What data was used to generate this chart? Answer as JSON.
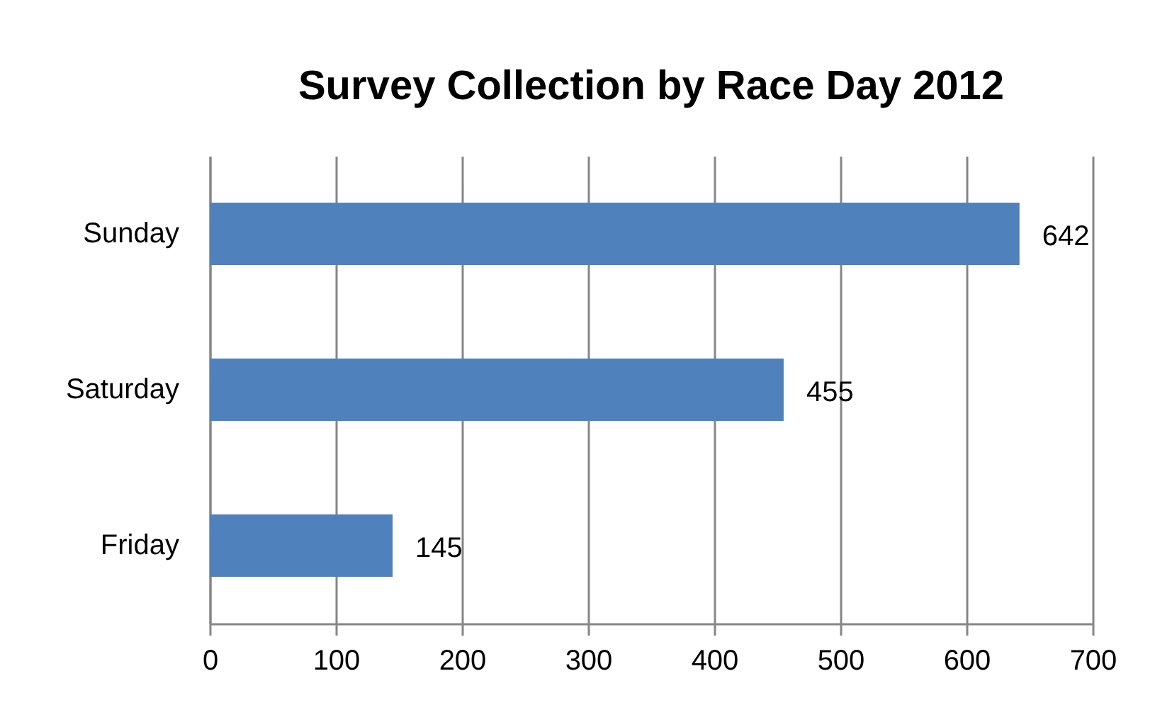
{
  "chart_data": {
    "type": "bar",
    "orientation": "horizontal",
    "title": "Survey Collection by Race Day 2012",
    "categories": [
      "Sunday",
      "Saturday",
      "Friday"
    ],
    "values": [
      642,
      455,
      145
    ],
    "color": "#4f81bd",
    "xlim": [
      0,
      700
    ],
    "xticks": [
      0,
      100,
      200,
      300,
      400,
      500,
      600,
      700
    ],
    "grid": "x",
    "data_labels": true
  }
}
